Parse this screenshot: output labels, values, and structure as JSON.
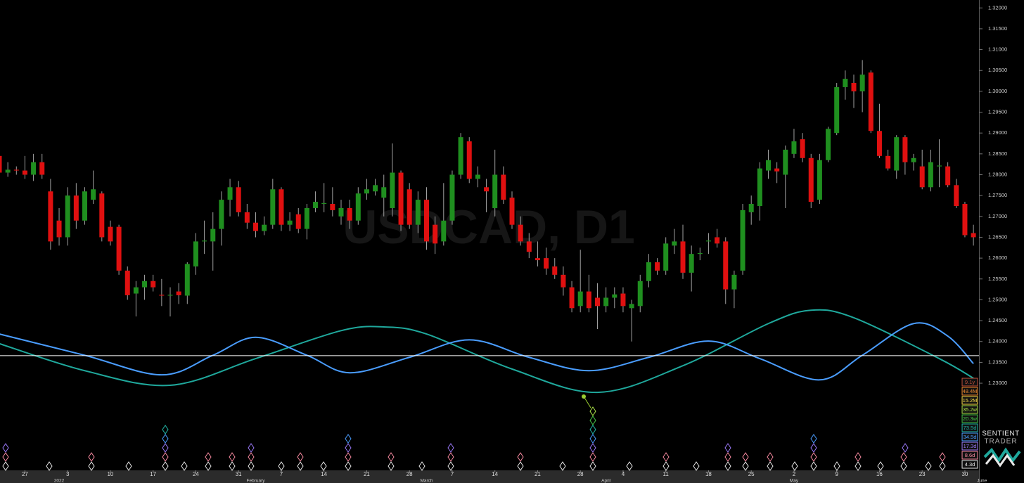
{
  "chart_data": {
    "type": "candlestick",
    "title": "USDCAD, D1",
    "categories": [
      null,
      null,
      null,
      "27",
      null,
      null,
      null,
      null,
      "3",
      null,
      null,
      null,
      null,
      "10",
      null,
      null,
      null,
      null,
      "17",
      null,
      null,
      null,
      null,
      "24",
      null,
      null,
      null,
      null,
      "31",
      null,
      null,
      null,
      null,
      "7",
      null,
      null,
      null,
      null,
      "14",
      null,
      null,
      null,
      null,
      "21",
      null,
      null,
      null,
      null,
      "28",
      null,
      null,
      null,
      null,
      "7",
      null,
      null,
      null,
      null,
      "14",
      null,
      null,
      null,
      null,
      "21",
      null,
      null,
      null,
      null,
      "28",
      null,
      null,
      null,
      null,
      "4",
      null,
      null,
      null,
      null,
      "11",
      null,
      null,
      null,
      null,
      "18",
      null,
      null,
      null,
      null,
      "25",
      null,
      null,
      null,
      null,
      "2",
      null,
      null,
      null,
      null,
      "9",
      null,
      null,
      null,
      null,
      "16",
      null,
      null,
      null,
      null,
      "23",
      null,
      null,
      null,
      null,
      "30",
      null
    ],
    "month_labels": [
      {
        "text": "2022",
        "x": 7
      },
      {
        "text": "February",
        "x": 30
      },
      {
        "text": "March",
        "x": 50
      },
      {
        "text": "April",
        "x": 71
      },
      {
        "text": "May",
        "x": 93
      },
      {
        "text": "June",
        "x": 115
      }
    ],
    "ohlc": [
      [
        1.2845,
        1.287,
        1.28,
        1.2805
      ],
      [
        1.2805,
        1.283,
        1.2795,
        1.2812
      ],
      [
        1.2812,
        1.282,
        1.28,
        1.281
      ],
      [
        1.281,
        1.2845,
        1.279,
        1.28
      ],
      [
        1.28,
        1.285,
        1.2785,
        1.283
      ],
      [
        1.283,
        1.285,
        1.279,
        1.28
      ],
      [
        1.276,
        1.279,
        1.262,
        1.264
      ],
      [
        1.269,
        1.272,
        1.263,
        1.265
      ],
      [
        1.265,
        1.277,
        1.263,
        1.275
      ],
      [
        1.275,
        1.278,
        1.267,
        1.269
      ],
      [
        1.269,
        1.277,
        1.268,
        1.276
      ],
      [
        1.274,
        1.281,
        1.273,
        1.2765
      ],
      [
        1.2755,
        1.276,
        1.264,
        1.265
      ],
      [
        1.2675,
        1.269,
        1.263,
        1.264
      ],
      [
        1.2675,
        1.268,
        1.256,
        1.257
      ],
      [
        1.257,
        1.258,
        1.25,
        1.2511
      ],
      [
        1.2515,
        1.2545,
        1.246,
        1.253
      ],
      [
        1.253,
        1.256,
        1.25,
        1.2545
      ],
      [
        1.2545,
        1.256,
        1.252,
        1.253
      ],
      [
        1.2512,
        1.255,
        1.2485,
        1.251
      ],
      [
        1.251,
        1.253,
        1.246,
        1.2512
      ],
      [
        1.252,
        1.254,
        1.249,
        1.2511
      ],
      [
        1.251,
        1.259,
        1.249,
        1.2586
      ],
      [
        1.258,
        1.266,
        1.256,
        1.264
      ],
      [
        1.264,
        1.269,
        1.261,
        1.2642
      ],
      [
        1.264,
        1.271,
        1.257,
        1.267
      ],
      [
        1.267,
        1.276,
        1.263,
        1.274
      ],
      [
        1.274,
        1.279,
        1.27,
        1.277
      ],
      [
        1.277,
        1.2785,
        1.27,
        1.271
      ],
      [
        1.271,
        1.273,
        1.267,
        1.2685
      ],
      [
        1.2685,
        1.271,
        1.265,
        1.2665
      ],
      [
        1.2665,
        1.27,
        1.2655,
        1.268
      ],
      [
        1.268,
        1.279,
        1.267,
        1.2765
      ],
      [
        1.2765,
        1.277,
        1.2665,
        1.268
      ],
      [
        1.268,
        1.271,
        1.2665,
        1.269
      ],
      [
        1.2705,
        1.272,
        1.266,
        1.267
      ],
      [
        1.267,
        1.273,
        1.2645,
        1.272
      ],
      [
        1.272,
        1.276,
        1.271,
        1.2735
      ],
      [
        1.273,
        1.278,
        1.271,
        1.2732
      ],
      [
        1.273,
        1.277,
        1.27,
        1.2715
      ],
      [
        1.27,
        1.274,
        1.268,
        1.272
      ],
      [
        1.272,
        1.274,
        1.267,
        1.269
      ],
      [
        1.269,
        1.277,
        1.268,
        1.2755
      ],
      [
        1.2755,
        1.279,
        1.274,
        1.2765
      ],
      [
        1.276,
        1.279,
        1.275,
        1.2775
      ],
      [
        1.2745,
        1.28,
        1.27,
        1.277
      ],
      [
        1.272,
        1.2875,
        1.27,
        1.2805
      ],
      [
        1.2805,
        1.281,
        1.2665,
        1.268
      ],
      [
        1.2765,
        1.278,
        1.267,
        1.268
      ],
      [
        1.268,
        1.276,
        1.266,
        1.274
      ],
      [
        1.274,
        1.277,
        1.262,
        1.264
      ],
      [
        1.268,
        1.27,
        1.261,
        1.2635
      ],
      [
        1.264,
        1.278,
        1.263,
        1.269
      ],
      [
        1.269,
        1.281,
        1.268,
        1.28
      ],
      [
        1.28,
        1.29,
        1.279,
        1.289
      ],
      [
        1.288,
        1.289,
        1.278,
        1.279
      ],
      [
        1.279,
        1.282,
        1.277,
        1.28
      ],
      [
        1.277,
        1.279,
        1.271,
        1.276
      ],
      [
        1.272,
        1.286,
        1.27,
        1.28
      ],
      [
        1.28,
        1.282,
        1.273,
        1.274
      ],
      [
        1.2745,
        1.276,
        1.267,
        1.268
      ],
      [
        1.268,
        1.27,
        1.263,
        1.264
      ],
      [
        1.264,
        1.266,
        1.26,
        1.2615
      ],
      [
        1.26,
        1.264,
        1.258,
        1.2595
      ],
      [
        1.26,
        1.2625,
        1.256,
        1.2575
      ],
      [
        1.258,
        1.26,
        1.255,
        1.256
      ],
      [
        1.256,
        1.258,
        1.251,
        1.253
      ],
      [
        1.253,
        1.2545,
        1.247,
        1.248
      ],
      [
        1.2485,
        1.262,
        1.247,
        1.252
      ],
      [
        1.252,
        1.256,
        1.247,
        1.248
      ],
      [
        1.2505,
        1.254,
        1.243,
        1.2485
      ],
      [
        1.2485,
        1.253,
        1.247,
        1.2505
      ],
      [
        1.2505,
        1.253,
        1.248,
        1.2513
      ],
      [
        1.2515,
        1.253,
        1.247,
        1.2485
      ],
      [
        1.248,
        1.25,
        1.24,
        1.249
      ],
      [
        1.2485,
        1.256,
        1.247,
        1.2545
      ],
      [
        1.2545,
        1.261,
        1.253,
        1.259
      ],
      [
        1.259,
        1.26,
        1.256,
        1.257
      ],
      [
        1.257,
        1.265,
        1.256,
        1.2635
      ],
      [
        1.263,
        1.267,
        1.261,
        1.264
      ],
      [
        1.264,
        1.268,
        1.255,
        1.2565
      ],
      [
        1.2565,
        1.263,
        1.252,
        1.261
      ],
      [
        1.261,
        1.2625,
        1.2595,
        1.2612
      ],
      [
        1.264,
        1.266,
        1.261,
        1.2642
      ],
      [
        1.265,
        1.267,
        1.2625,
        1.2635
      ],
      [
        1.264,
        1.265,
        1.249,
        1.2525
      ],
      [
        1.2525,
        1.257,
        1.248,
        1.256
      ],
      [
        1.257,
        1.273,
        1.256,
        1.2715
      ],
      [
        1.271,
        1.275,
        1.268,
        1.273
      ],
      [
        1.2725,
        1.283,
        1.269,
        1.2815
      ],
      [
        1.281,
        1.286,
        1.279,
        1.2835
      ],
      [
        1.2815,
        1.283,
        1.278,
        1.2808
      ],
      [
        1.28,
        1.287,
        1.272,
        1.286
      ],
      [
        1.285,
        1.291,
        1.284,
        1.288
      ],
      [
        1.2885,
        1.29,
        1.283,
        1.284
      ],
      [
        1.284,
        1.285,
        1.272,
        1.2735
      ],
      [
        1.274,
        1.285,
        1.273,
        1.2835
      ],
      [
        1.2835,
        1.2915,
        1.283,
        1.291
      ],
      [
        1.29,
        1.302,
        1.2895,
        1.301
      ],
      [
        1.301,
        1.305,
        1.298,
        1.303
      ],
      [
        1.302,
        1.304,
        1.296,
        1.3
      ],
      [
        1.3,
        1.3075,
        1.295,
        1.304
      ],
      [
        1.3045,
        1.305,
        1.29,
        1.2905
      ],
      [
        1.2905,
        1.297,
        1.284,
        1.2845
      ],
      [
        1.2845,
        1.286,
        1.281,
        1.2815
      ],
      [
        1.281,
        1.2895,
        1.279,
        1.289
      ],
      [
        1.289,
        1.2895,
        1.28,
        1.283
      ],
      [
        1.283,
        1.285,
        1.281,
        1.284
      ],
      [
        1.282,
        1.286,
        1.2765,
        1.277
      ],
      [
        1.277,
        1.286,
        1.276,
        1.283
      ],
      [
        1.282,
        1.2885,
        1.277,
        1.2822
      ],
      [
        1.282,
        1.283,
        1.277,
        1.2775
      ],
      [
        1.2775,
        1.279,
        1.272,
        1.2725
      ],
      [
        1.273,
        1.2735,
        1.265,
        1.2655
      ],
      [
        1.266,
        1.268,
        1.263,
        1.265
      ]
    ],
    "up_color": "#1f8f1f",
    "down_color": "#e01010",
    "wick_color": "#a0a0a0",
    "ylim": [
      1.2091,
      1.3219
    ],
    "yticks": [
      {
        "value": 1.32,
        "label": "1.32000"
      },
      {
        "value": 1.315,
        "label": "1.31500"
      },
      {
        "value": 1.31,
        "label": "1.31000"
      },
      {
        "value": 1.305,
        "label": "1.30500"
      },
      {
        "value": 1.3,
        "label": "1.30000"
      },
      {
        "value": 1.295,
        "label": "1.29500"
      },
      {
        "value": 1.29,
        "label": "1.29000"
      },
      {
        "value": 1.285,
        "label": "1.28500"
      },
      {
        "value": 1.28,
        "label": "1.28000"
      },
      {
        "value": 1.275,
        "label": "1.27500"
      },
      {
        "value": 1.27,
        "label": "1.27000"
      },
      {
        "value": 1.265,
        "label": "1.26500"
      },
      {
        "value": 1.26,
        "label": "1.26000"
      },
      {
        "value": 1.255,
        "label": "1.25500"
      },
      {
        "value": 1.25,
        "label": "1.25000"
      },
      {
        "value": 1.245,
        "label": "1.24500"
      },
      {
        "value": 1.24,
        "label": "1.24000"
      },
      {
        "value": 1.235,
        "label": "1.23500"
      },
      {
        "value": 1.23,
        "label": "1.23000"
      }
    ],
    "hline": 1.2366,
    "cycle_waves": [
      {
        "color": "#1fa89c",
        "x": [
          0,
          10,
          20,
          30,
          40,
          45,
          50,
          60,
          70,
          80,
          90,
          95,
          100,
          110,
          114
        ],
        "values": [
          1.2395,
          1.233,
          1.2295,
          1.2359,
          1.2426,
          1.2435,
          1.2418,
          1.2334,
          1.2278,
          1.2342,
          1.2443,
          1.2475,
          1.2457,
          1.2359,
          1.2312
        ]
      },
      {
        "color": "#4a9dff",
        "x": [
          0,
          10,
          19,
          25,
          30,
          36,
          41,
          48,
          55,
          62,
          69,
          76,
          83,
          89,
          96,
          101,
          107,
          111,
          114
        ],
        "values": [
          1.2418,
          1.2367,
          1.232,
          1.2367,
          1.241,
          1.2367,
          1.2325,
          1.2362,
          1.2404,
          1.2362,
          1.233,
          1.2362,
          1.2401,
          1.2359,
          1.2308,
          1.2367,
          1.2443,
          1.2413,
          1.2347
        ]
      }
    ],
    "cycles": [
      {
        "label": "9.1y",
        "color": "#c0503a"
      },
      {
        "label": "48.4M",
        "color": "#f08a30"
      },
      {
        "label": "15.2M",
        "color": "#ffe14a"
      },
      {
        "label": "35.2w",
        "color": "#b0e84a"
      },
      {
        "label": "20.3w",
        "color": "#48c848"
      },
      {
        "label": "73.5d",
        "color": "#22b8a8"
      },
      {
        "label": "34.5d",
        "color": "#4a9dff"
      },
      {
        "label": "17.3d",
        "color": "#9a78f8"
      },
      {
        "label": "8.6d",
        "color": "#f88aa0"
      },
      {
        "label": "4.3d",
        "color": "#e8e8e8"
      }
    ],
    "logo": {
      "line1": "SENTIENT",
      "line2": "TRADER"
    }
  }
}
